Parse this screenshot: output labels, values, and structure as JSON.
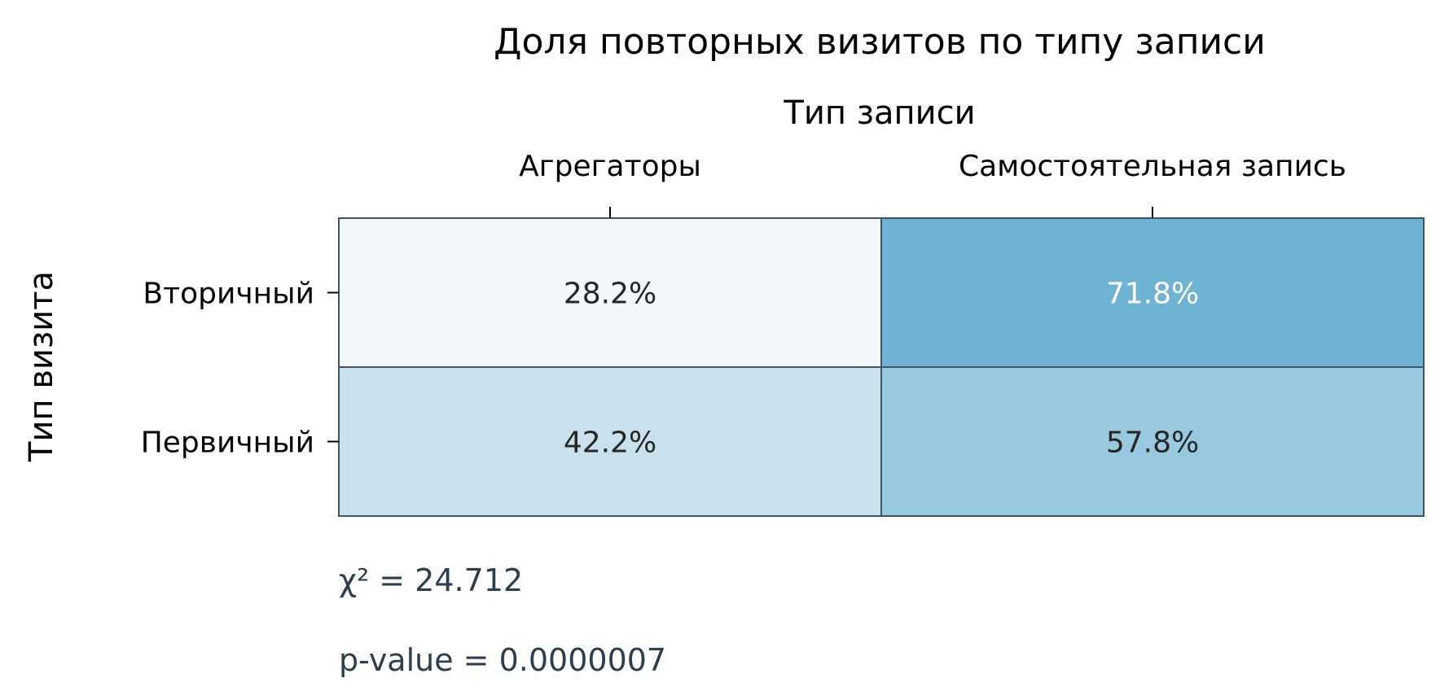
{
  "chart_data": {
    "type": "heatmap",
    "title": "Доля повторных визитов по типу записи",
    "xlabel": "Тип записи",
    "ylabel": "Тип визита",
    "x_categories": [
      "Агрегаторы",
      "Самостоятельная запись"
    ],
    "y_categories": [
      "Вторичный",
      "Первичный"
    ],
    "values": [
      [
        28.2,
        71.8
      ],
      [
        42.2,
        57.8
      ]
    ],
    "cell_labels": [
      [
        "28.2%",
        "71.8%"
      ],
      [
        "42.2%",
        "57.8%"
      ]
    ],
    "value_unit": "%",
    "x_axis_position": "top",
    "colorbar": false,
    "colors": {
      "low": "#f2f7fa",
      "high": "#6fb3d3",
      "grid": "#3d5566",
      "text_dark": "#262626",
      "text_light": "#ffffff"
    },
    "annotations": [
      "χ² = 24.712",
      "p-value = 0.0000007"
    ]
  }
}
